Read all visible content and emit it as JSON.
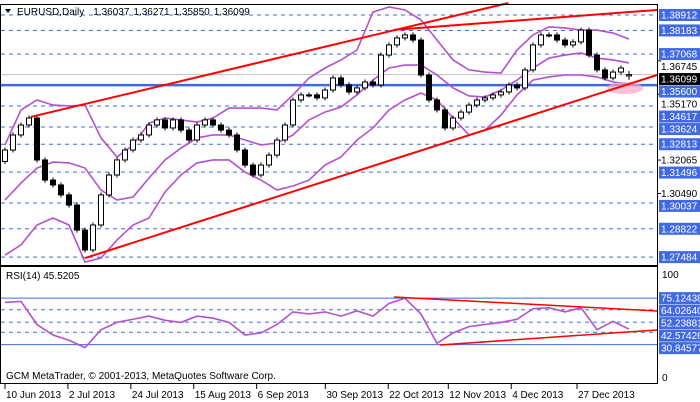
{
  "header": {
    "symbol_timeframe": "EURUSD,Daily",
    "open": "1.36037",
    "high": "1.36271",
    "low": "1.35850",
    "close": "1.36099"
  },
  "watermark": "GCM MetaTrader, © 2001-2013, MetaQuotes Software Corp.",
  "colors": {
    "bull_body": "#ffffff",
    "bear_body": "#000000",
    "bands": "#b450d0",
    "trendline": "#ff0000",
    "level_line": "#4169e1",
    "level_label_bg": "#4169e1",
    "current_price_bg": "#000000",
    "rsi_line": "#b450d0"
  },
  "chart_data": [
    {
      "type": "candlestick",
      "title": "EURUSD,Daily",
      "ylim": [
        1.272,
        1.396
      ],
      "x_tick_labels": [
        "10 Jun 2013",
        "2 Jul 2013",
        "24 Jul 2013",
        "15 Aug 2013",
        "6 Sep 2013",
        "30 Sep 2013",
        "22 Oct 2013",
        "12 Nov 2013",
        "4 Dec 2013",
        "27 Dec 2013"
      ],
      "x_tick_dates": [
        "2013-06-10",
        "2013-07-02",
        "2013-07-24",
        "2013-08-15",
        "2013-09-06",
        "2013-09-30",
        "2013-10-22",
        "2013-11-12",
        "2013-12-04",
        "2013-12-27"
      ],
      "closes": [
        1.3254,
        1.3325,
        1.3372,
        1.3405,
        1.3207,
        1.3112,
        1.3089,
        1.3042,
        1.2994,
        1.2876,
        1.2782,
        1.29,
        1.3042,
        1.3136,
        1.3207,
        1.3254,
        1.3301,
        1.3325,
        1.3372,
        1.3396,
        1.3358,
        1.3396,
        1.3348,
        1.3301,
        1.3372,
        1.3396,
        1.3372,
        1.3348,
        1.3325,
        1.3254,
        1.3183,
        1.3136,
        1.3183,
        1.323,
        1.3301,
        1.3372,
        1.349,
        1.3514,
        1.3514,
        1.35,
        1.3537,
        1.3594,
        1.3561,
        1.3528,
        1.3547,
        1.3575,
        1.3561,
        1.3702,
        1.375,
        1.3783,
        1.3797,
        1.3773,
        1.3608,
        1.349,
        1.3443,
        1.3358,
        1.3405,
        1.3433,
        1.3466,
        1.349,
        1.35,
        1.3514,
        1.3528,
        1.3561,
        1.3547,
        1.3632,
        1.375,
        1.3797,
        1.3797,
        1.3773,
        1.375,
        1.3764,
        1.382,
        1.3702,
        1.3632,
        1.3594,
        1.3622,
        1.3641,
        1.36099
      ],
      "bollinger": {
        "upper": [
          1.3278,
          1.3443,
          1.349,
          1.3466,
          1.3462,
          1.3466,
          1.3311,
          1.3221,
          1.3278,
          1.3381,
          1.3405,
          1.3396,
          1.3386,
          1.3405,
          1.3452,
          1.3452,
          1.3452,
          1.3443,
          1.3514,
          1.3594,
          1.3641,
          1.3679,
          1.3726,
          1.3905,
          1.3929,
          1.3915,
          1.3868,
          1.3773,
          1.3679,
          1.3632,
          1.3622,
          1.3617,
          1.3726,
          1.3797,
          1.3835,
          1.383,
          1.382,
          1.382,
          1.3806,
          1.3778
        ],
        "middle": [
          1.3018,
          1.3098,
          1.3169,
          1.3197,
          1.3193,
          1.3169,
          1.3065,
          1.3018,
          1.3032,
          1.3122,
          1.3207,
          1.3263,
          1.3311,
          1.3325,
          1.3325,
          1.3301,
          1.3278,
          1.3287,
          1.3325,
          1.3396,
          1.3433,
          1.3457,
          1.3514,
          1.3584,
          1.3641,
          1.3655,
          1.3655,
          1.3608,
          1.3547,
          1.3509,
          1.3504,
          1.3537,
          1.3584,
          1.3641,
          1.3688,
          1.3702,
          1.3712,
          1.3688,
          1.3679,
          1.3665
        ],
        "lower": [
          1.2758,
          1.2806,
          1.29,
          1.2933,
          1.29,
          1.2725,
          1.2744,
          1.2829,
          1.29,
          1.2933,
          1.3056,
          1.3136,
          1.3193,
          1.3207,
          1.3207,
          1.315,
          1.3112,
          1.3065,
          1.3084,
          1.3112,
          1.3183,
          1.3221,
          1.3301,
          1.3358,
          1.3443,
          1.349,
          1.3523,
          1.349,
          1.3405,
          1.3325,
          1.3348,
          1.3419,
          1.3514,
          1.3584,
          1.3599,
          1.3608,
          1.3608,
          1.3599,
          1.3575,
          1.3566
        ]
      },
      "trendlines": [
        {
          "from": [
            "2013-06-19",
            1.341
          ],
          "to": [
            "2013-12-03",
            1.3948
          ]
        },
        {
          "from": [
            "2013-10-24",
            1.3821
          ],
          "to": [
            "2014-01-24",
            1.3915
          ]
        },
        {
          "from": [
            "2013-07-08",
            1.2744
          ],
          "to": [
            "2014-01-24",
            1.3608
          ]
        }
      ],
      "support_level": "1.35600",
      "current_price": "1.36099",
      "level_labels": [
        "1.38912",
        "1.38183",
        "1.37068",
        "1.34617",
        "1.33624",
        "1.32813",
        "1.31496",
        "1.30037",
        "1.28822",
        "1.27484"
      ],
      "scale_labels": [
        "1.36745",
        "1.35170",
        "1.32065",
        "1.30490"
      ]
    },
    {
      "type": "line",
      "title": "RSI(14) 45.5205",
      "ylim": [
        0,
        100
      ],
      "values": [
        71,
        72,
        50,
        40,
        35,
        28,
        45,
        52,
        55,
        58,
        54,
        52,
        58,
        56,
        52,
        40,
        42,
        50,
        62,
        60,
        62,
        58,
        63,
        58,
        70,
        75,
        60,
        32,
        42,
        48,
        50,
        52,
        55,
        65,
        66,
        62,
        66,
        45,
        53,
        45.5205
      ],
      "axis_labels": [
        "100",
        "0"
      ],
      "levels": [
        {
          "label": "75.12438",
          "value": 75.12438,
          "style": "solid"
        },
        {
          "label": "64.02640",
          "value": 64.0264,
          "style": "dashed"
        },
        {
          "label": "52.23881",
          "value": 52.23881,
          "style": "dashed"
        },
        {
          "label": "42.57426",
          "value": 42.57426,
          "style": "dashed"
        },
        {
          "label": "30.84577",
          "value": 30.84577,
          "style": "solid"
        }
      ],
      "trendlines": [
        {
          "from": [
            "2013-10-24",
            76.2
          ],
          "to": [
            "2014-01-24",
            62.9
          ]
        },
        {
          "from": [
            "2013-11-09",
            30.5
          ],
          "to": [
            "2014-01-24",
            44.8
          ]
        }
      ]
    }
  ]
}
